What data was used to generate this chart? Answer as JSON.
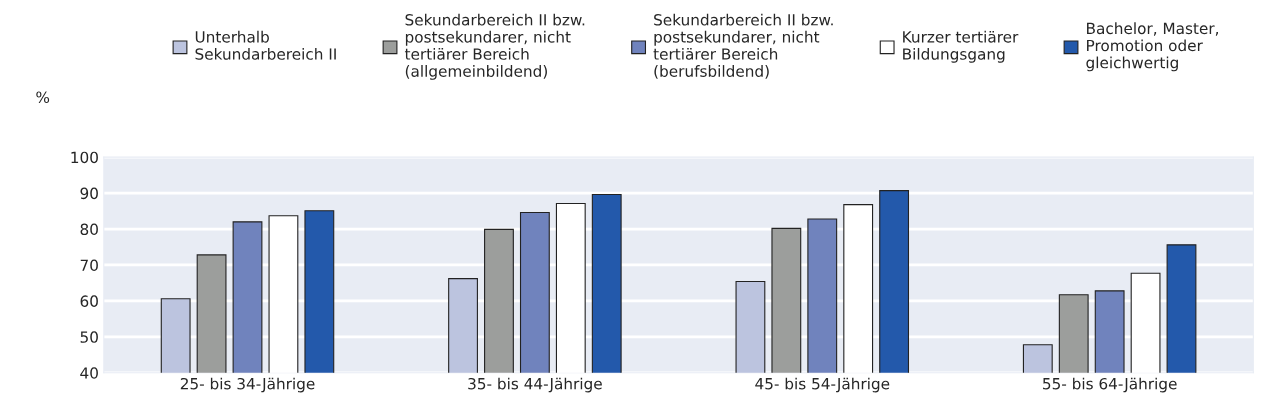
{
  "chart_data": {
    "type": "bar",
    "ylabel": "%",
    "categories": [
      "25- bis 34-Jährige",
      "35- bis 44-Jährige",
      "45- bis 54-Jährige",
      "55- bis 64-Jährige"
    ],
    "series": [
      {
        "name": "Unterhalb\nSekundarbereich II",
        "color": "#bcc4df",
        "values": [
          60.6,
          66.2,
          65.4,
          47.8
        ]
      },
      {
        "name": "Sekundarbereich II bzw.\npostsekundarer, nicht\ntertiärer Bereich\n(allgemeinbildend)",
        "color": "#9c9e9c",
        "values": [
          72.8,
          79.9,
          80.2,
          61.7
        ]
      },
      {
        "name": "Sekundarbereich II bzw.\npostsekundarer, nicht\ntertiärer Bereich\n(berufsbildend)",
        "color": "#7083bd",
        "values": [
          82.0,
          84.6,
          82.8,
          62.8
        ]
      },
      {
        "name": "Kurzer tertiärer\nBildungsgang",
        "color": "#ffffff",
        "values": [
          83.7,
          87.1,
          86.8,
          67.7
        ]
      },
      {
        "name": "Bachelor, Master,\nPromotion oder\ngleichwertig",
        "color": "#2359ab",
        "values": [
          85.1,
          89.6,
          90.7,
          75.6
        ]
      }
    ],
    "ylim": [
      40,
      100
    ],
    "yticks": [
      40,
      50,
      60,
      70,
      80,
      90,
      100
    ],
    "grid": "y",
    "legend": "top"
  }
}
